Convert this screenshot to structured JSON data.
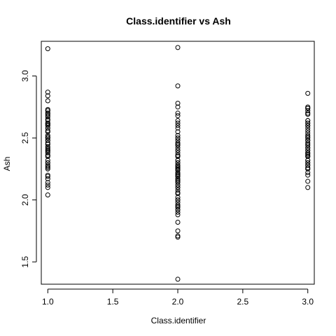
{
  "chart_data": {
    "type": "scatter",
    "title": "Class.identifier vs Ash",
    "xlabel": "Class.identifier",
    "ylabel": "Ash",
    "xlim": [
      0.95,
      3.05
    ],
    "ylim": [
      1.32,
      3.28
    ],
    "xticks": [
      1.0,
      1.5,
      2.0,
      2.5,
      3.0
    ],
    "xtick_labels": [
      "1.0",
      "1.5",
      "2.0",
      "2.5",
      "3.0"
    ],
    "yticks": [
      1.5,
      2.0,
      2.5,
      3.0
    ],
    "ytick_labels": [
      "1.5",
      "2.0",
      "2.5",
      "3.0"
    ],
    "grid": false,
    "series": [
      {
        "x": [
          1,
          1,
          1,
          1,
          1,
          1,
          1,
          1,
          1,
          1,
          1,
          1,
          1,
          1,
          1,
          1,
          1,
          1,
          1,
          1,
          1,
          1,
          1,
          1,
          1,
          1,
          1,
          1,
          1,
          1,
          1,
          1,
          1,
          1,
          1,
          1,
          1,
          1,
          1,
          1,
          1,
          1,
          1,
          1,
          1,
          1,
          1,
          1,
          1,
          1,
          1,
          1,
          1,
          1,
          1,
          1,
          1,
          1,
          1
        ],
        "y": [
          3.22,
          2.87,
          2.84,
          2.8,
          2.72,
          2.7,
          2.69,
          2.68,
          2.67,
          2.65,
          2.62,
          2.61,
          2.6,
          2.58,
          2.56,
          2.55,
          2.52,
          2.51,
          2.5,
          2.48,
          2.46,
          2.45,
          2.43,
          2.42,
          2.41,
          2.4,
          2.39,
          2.38,
          2.36,
          2.35,
          2.32,
          2.3,
          2.28,
          2.27,
          2.26,
          2.25,
          2.2,
          2.17,
          2.14,
          2.12,
          2.1,
          2.04,
          2.5,
          2.45,
          2.6,
          2.7,
          2.36,
          2.48,
          2.61,
          2.3,
          2.4,
          2.65,
          2.55,
          2.73,
          2.19,
          2.62,
          2.72,
          2.64,
          2.58
        ]
      },
      {
        "x": [
          2,
          2,
          2,
          2,
          2,
          2,
          2,
          2,
          2,
          2,
          2,
          2,
          2,
          2,
          2,
          2,
          2,
          2,
          2,
          2,
          2,
          2,
          2,
          2,
          2,
          2,
          2,
          2,
          2,
          2,
          2,
          2,
          2,
          2,
          2,
          2,
          2,
          2,
          2,
          2,
          2,
          2,
          2,
          2,
          2,
          2,
          2,
          2,
          2,
          2,
          2,
          2,
          2,
          2,
          2,
          2,
          2,
          2,
          2,
          2,
          2,
          2,
          2,
          2,
          2,
          2,
          2,
          2,
          2,
          2,
          2
        ],
        "y": [
          3.23,
          2.92,
          2.78,
          2.75,
          2.7,
          2.68,
          2.64,
          2.62,
          2.6,
          2.58,
          2.55,
          2.52,
          2.5,
          2.48,
          2.46,
          2.44,
          2.42,
          2.4,
          2.38,
          2.36,
          2.35,
          2.32,
          2.3,
          2.28,
          2.27,
          2.26,
          2.25,
          2.24,
          2.22,
          2.21,
          2.2,
          2.19,
          2.17,
          2.16,
          2.14,
          2.12,
          2.1,
          2.08,
          2.06,
          2.02,
          2.0,
          1.98,
          1.96,
          1.94,
          1.92,
          1.9,
          1.88,
          1.82,
          1.75,
          1.71,
          1.7,
          1.36,
          2.3,
          2.2,
          2.4,
          2.1,
          2.0,
          2.5,
          2.32,
          2.28,
          1.92,
          2.21,
          2.36,
          2.24,
          2.19,
          2.12,
          1.95,
          2.45,
          2.26,
          2.15,
          2.05
        ]
      },
      {
        "x": [
          3,
          3,
          3,
          3,
          3,
          3,
          3,
          3,
          3,
          3,
          3,
          3,
          3,
          3,
          3,
          3,
          3,
          3,
          3,
          3,
          3,
          3,
          3,
          3,
          3,
          3,
          3,
          3,
          3,
          3,
          3,
          3,
          3,
          3,
          3,
          3,
          3,
          3,
          3,
          3,
          3,
          3,
          3,
          3,
          3,
          3,
          3,
          3
        ],
        "y": [
          2.86,
          2.75,
          2.74,
          2.72,
          2.7,
          2.69,
          2.64,
          2.62,
          2.6,
          2.58,
          2.54,
          2.52,
          2.48,
          2.46,
          2.44,
          2.42,
          2.4,
          2.38,
          2.37,
          2.36,
          2.35,
          2.32,
          2.3,
          2.28,
          2.26,
          2.25,
          2.22,
          2.2,
          2.15,
          2.1,
          2.5,
          2.6,
          2.4,
          2.3,
          2.7,
          2.64,
          2.48,
          2.38,
          2.28,
          2.56,
          2.74,
          2.35,
          2.45,
          2.32,
          2.25,
          2.62,
          2.42,
          2.51
        ]
      }
    ]
  }
}
